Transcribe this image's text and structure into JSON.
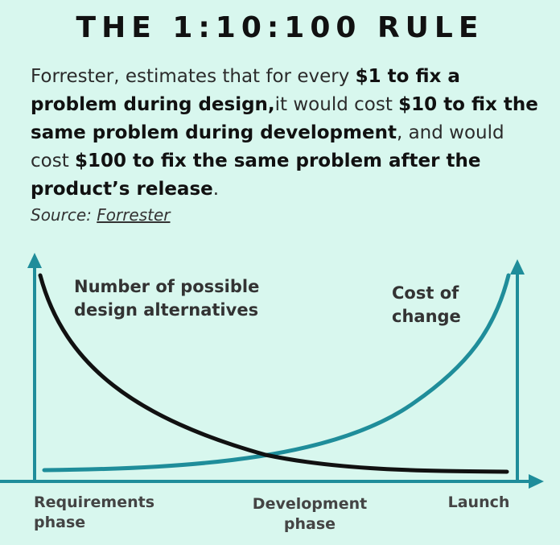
{
  "title": "THE 1:10:100 RULE",
  "description": {
    "p1": "Forrester, estimates that for every ",
    "b1": "$1 to fix a problem during design,",
    "p2": "it would cost ",
    "b2": "$10 to fix the same problem during development",
    "p3": ", and would cost ",
    "b3": "$100 to fix the same problem after the product’s release",
    "p4": "."
  },
  "source": {
    "label": "Source: ",
    "link": "Forrester"
  },
  "diagram": {
    "curve_alternatives_label_line1": "Number of possible",
    "curve_alternatives_label_line2": "design alternatives",
    "curve_cost_label_line1": "Cost of",
    "curve_cost_label_line2": "change",
    "phases": [
      {
        "line1": "Requirements",
        "line2": "phase"
      },
      {
        "line1": "Development",
        "line2": "phase"
      },
      {
        "line1": "Launch",
        "line2": ""
      }
    ],
    "colors": {
      "teal": "#1f8d9a",
      "black": "#111111",
      "background": "#d8f7ee"
    }
  }
}
